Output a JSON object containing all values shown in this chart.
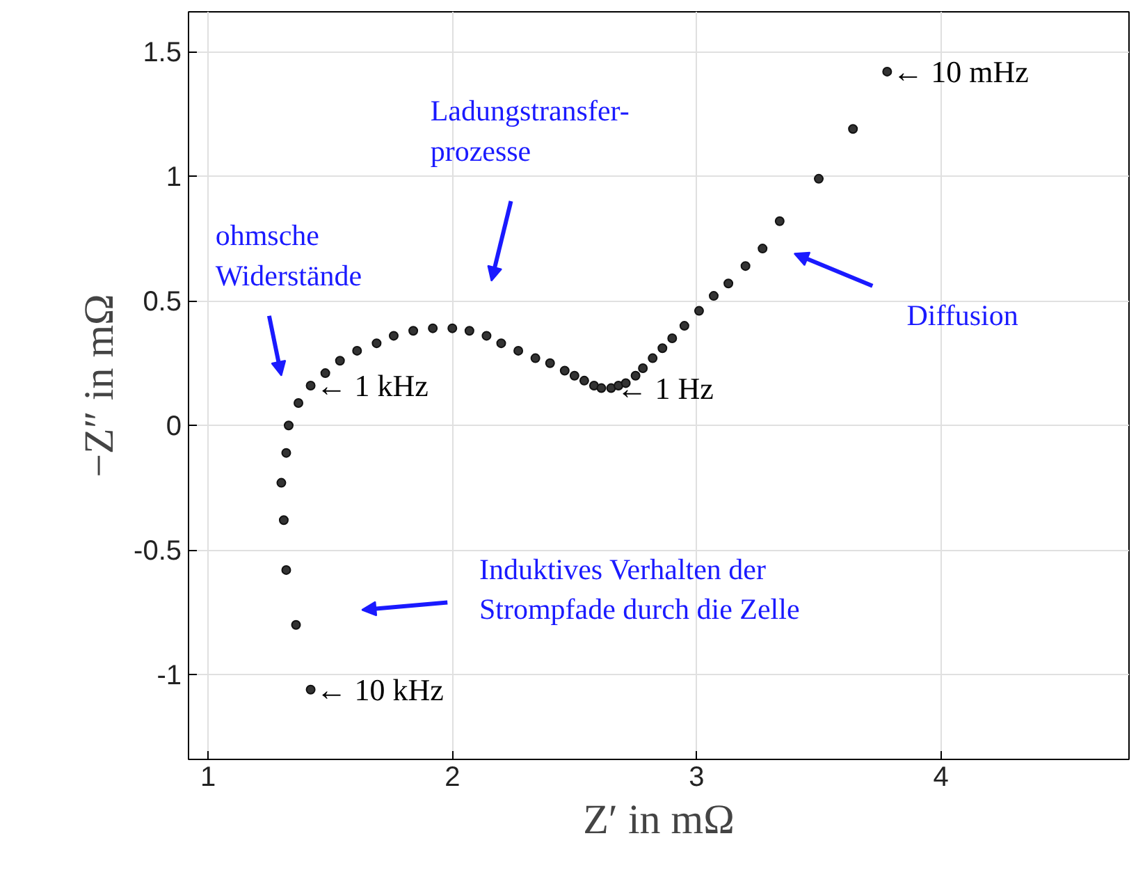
{
  "chart_data": {
    "type": "scatter",
    "xlabel": "Z′ in mΩ",
    "ylabel": "−Z″ in mΩ",
    "x": [
      1.42,
      1.36,
      1.32,
      1.31,
      1.3,
      1.32,
      1.33,
      1.37,
      1.42,
      1.48,
      1.54,
      1.61,
      1.69,
      1.76,
      1.84,
      1.92,
      2.0,
      2.07,
      2.14,
      2.2,
      2.27,
      2.34,
      2.4,
      2.46,
      2.5,
      2.54,
      2.58,
      2.61,
      2.65,
      2.68,
      2.71,
      2.75,
      2.78,
      2.82,
      2.86,
      2.9,
      2.95,
      3.01,
      3.07,
      3.13,
      3.2,
      3.27,
      3.34,
      3.5,
      3.64,
      3.78
    ],
    "series": [
      {
        "color": "#333333",
        "values": [
          -1.06,
          -0.8,
          -0.58,
          -0.38,
          -0.23,
          -0.11,
          0.0,
          0.09,
          0.16,
          0.21,
          0.26,
          0.3,
          0.33,
          0.36,
          0.38,
          0.39,
          0.39,
          0.38,
          0.36,
          0.33,
          0.3,
          0.27,
          0.25,
          0.22,
          0.2,
          0.18,
          0.16,
          0.15,
          0.15,
          0.16,
          0.17,
          0.2,
          0.23,
          0.27,
          0.31,
          0.35,
          0.4,
          0.46,
          0.52,
          0.57,
          0.64,
          0.71,
          0.82,
          0.99,
          1.19,
          1.42
        ]
      }
    ],
    "marker": "circle",
    "grid": true,
    "xlim": [
      0.92,
      4.77
    ],
    "ylim": [
      -1.34,
      1.66
    ],
    "xticks": [
      1,
      2,
      3,
      4
    ],
    "yticks": [
      -1,
      -0.5,
      0,
      0.5,
      1,
      1.5
    ],
    "annotations": [
      {
        "text": "← 10 mHz",
        "x": 3.78,
        "y": 1.42
      },
      {
        "text": "← 1 kHz",
        "x": 1.42,
        "y": 0.16
      },
      {
        "text": "← 1 Hz",
        "x": 2.65,
        "y": 0.15
      },
      {
        "text": "← 10 kHz",
        "x": 1.42,
        "y": -1.06
      },
      "ohmsche\nWiderstände",
      "Ladungstransfer-\nprozesse",
      "Diffusion",
      "Induktives Verhalten der\nStrompfade durch die Zelle"
    ]
  }
}
